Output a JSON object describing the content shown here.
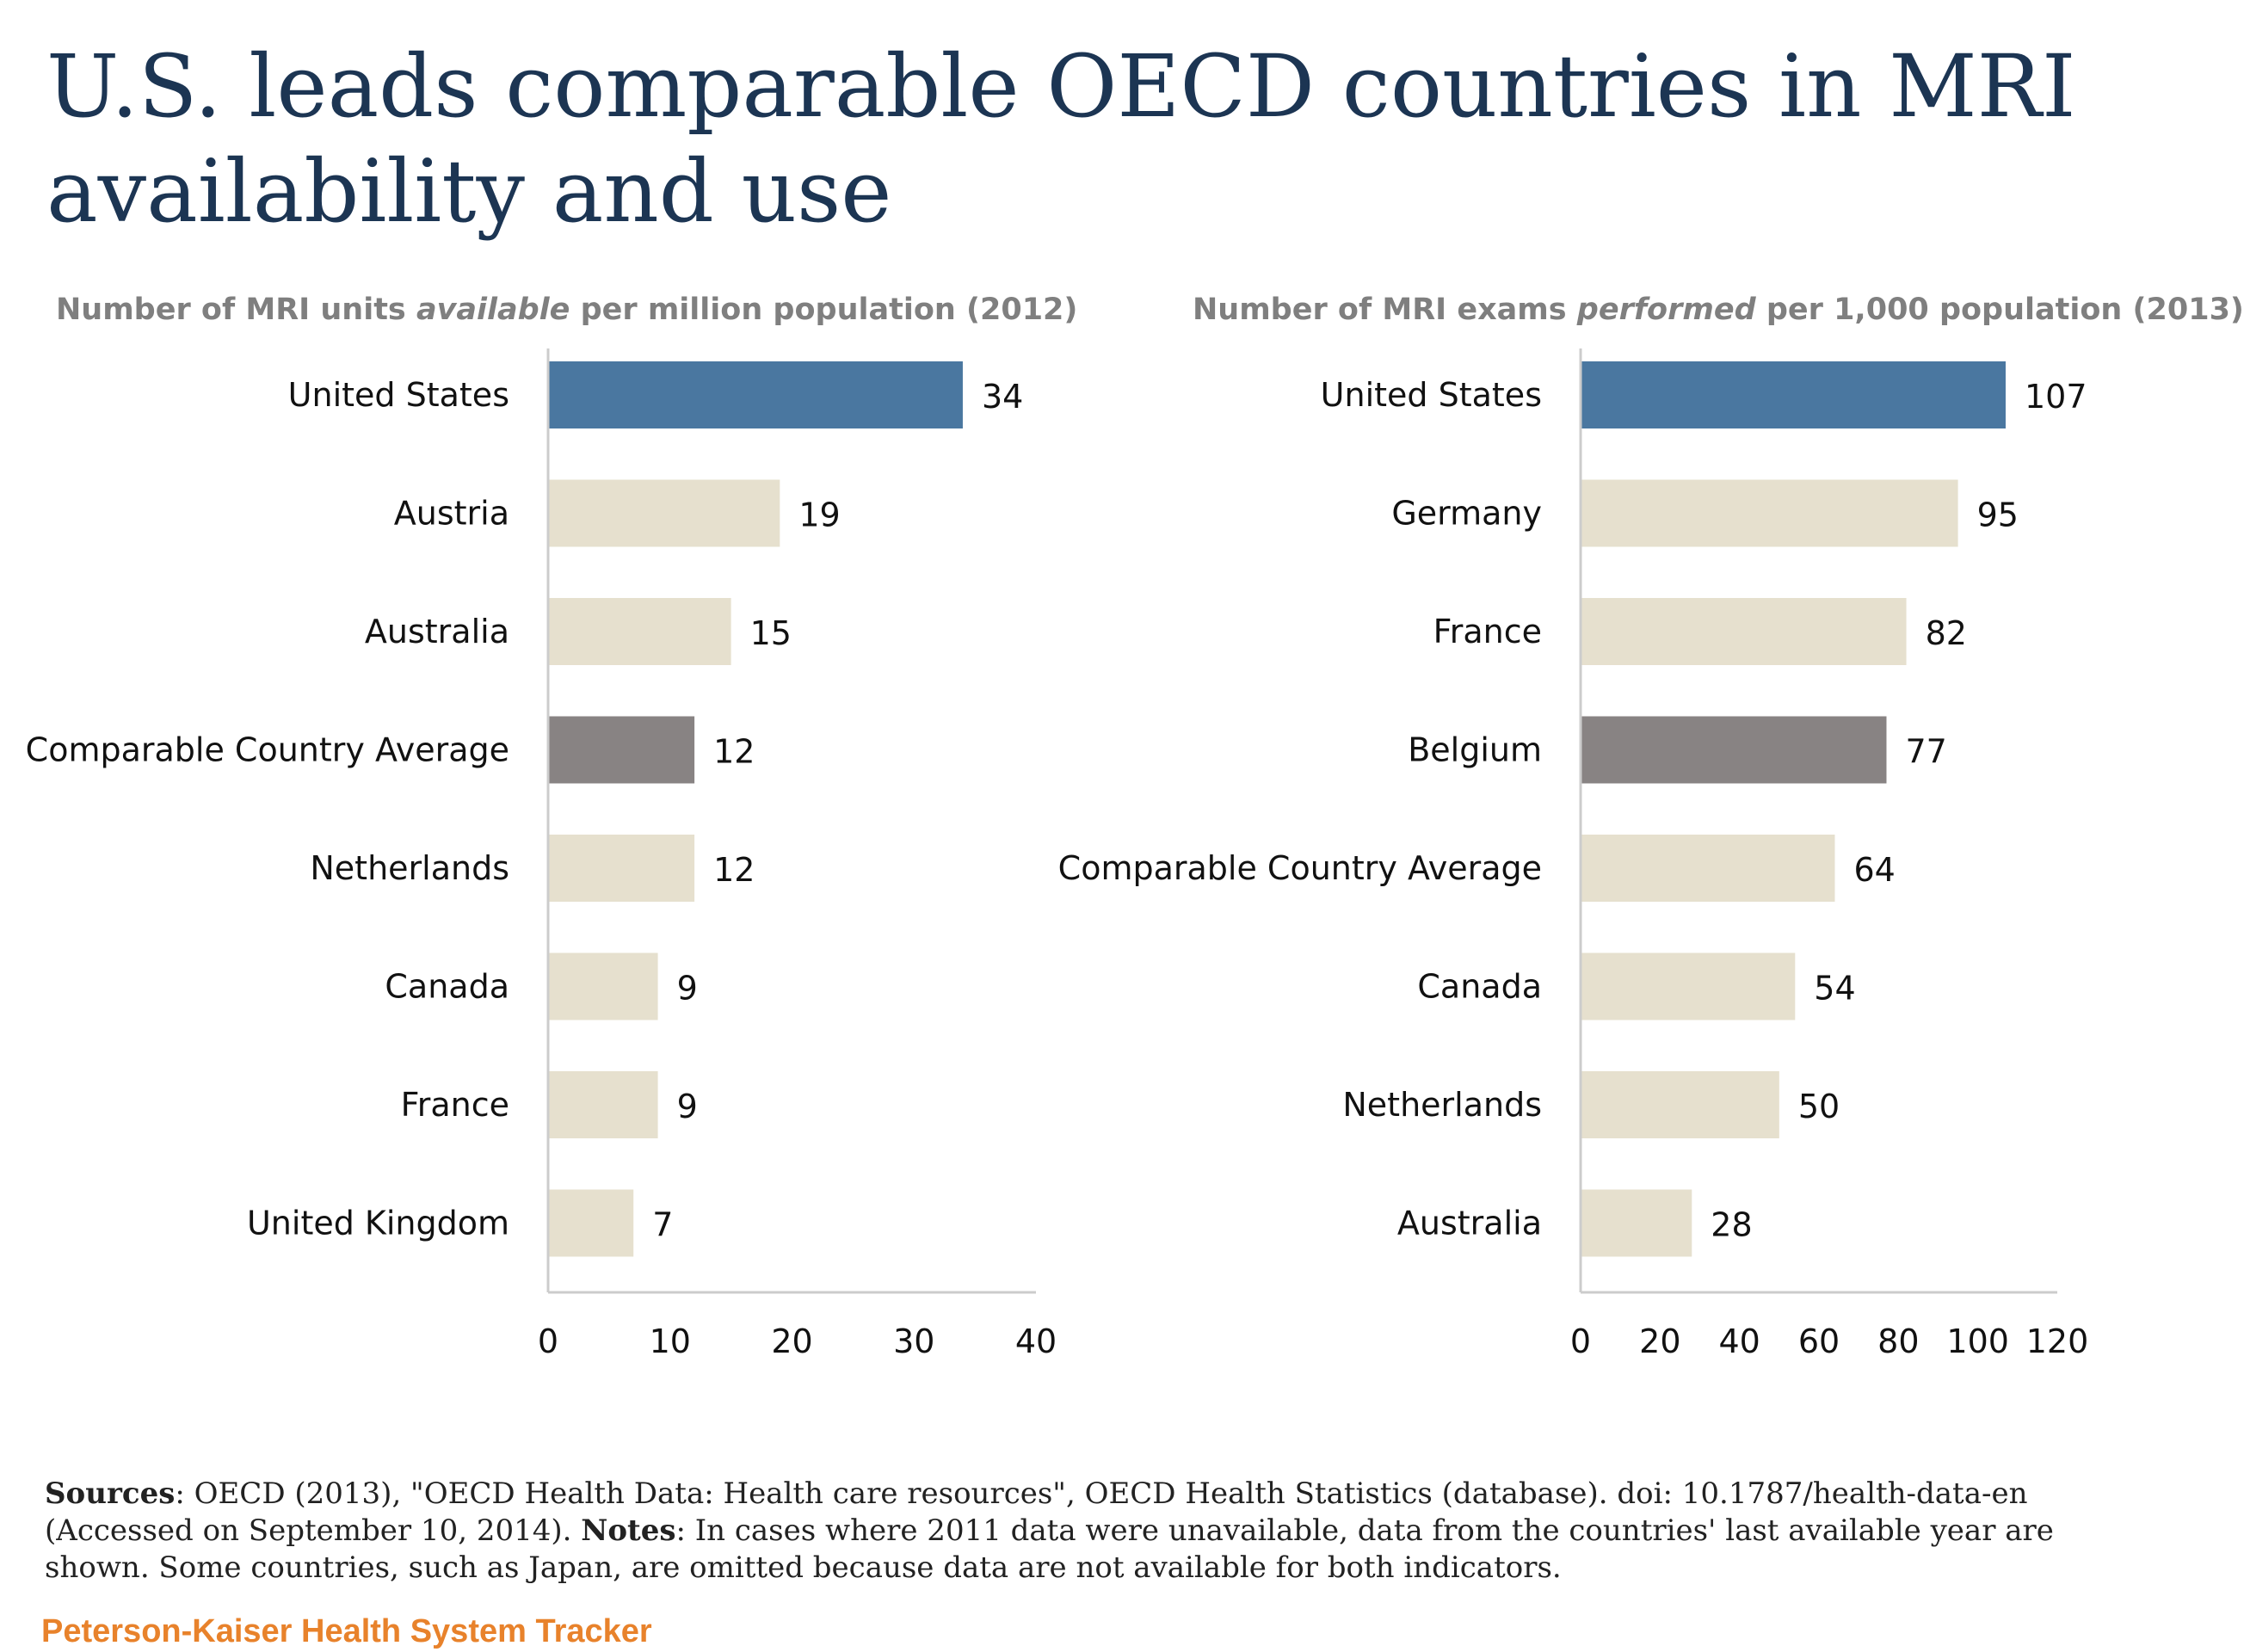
{
  "title": "U.S. leads comparable OECD countries in MRI availability and use",
  "colors": {
    "highlight": "#4a77a0",
    "average": "#888383",
    "default": "#e6e0ce",
    "axis": "#cccccc",
    "title": "#1c3553",
    "brand": "#e8822b"
  },
  "chart_data": [
    {
      "type": "bar",
      "orientation": "horizontal",
      "title_parts": [
        "Number of MRI units ",
        "available",
        " per million population (2012)"
      ],
      "categories": [
        "United States",
        "Austria",
        "Australia",
        "Comparable Country Average",
        "Netherlands",
        "Canada",
        "France",
        "United Kingdom"
      ],
      "values": [
        34,
        19,
        15,
        12,
        12,
        9,
        9,
        7
      ],
      "value_labels": [
        "34",
        "19",
        "15",
        "12",
        "12",
        "9",
        "9",
        "7"
      ],
      "bar_styles": [
        "highlight",
        "default",
        "default",
        "average",
        "default",
        "default",
        "default",
        "default"
      ],
      "xlim": [
        0,
        40
      ],
      "xticks": [
        0,
        10,
        20,
        30,
        40
      ],
      "grid": false,
      "legend": "none"
    },
    {
      "type": "bar",
      "orientation": "horizontal",
      "title_parts": [
        "Number of MRI exams ",
        "performed",
        "  per 1,000 population (2013)"
      ],
      "categories": [
        "United States",
        "Germany",
        "France",
        "Belgium",
        "Comparable Country Average",
        "Canada",
        "Netherlands",
        "Australia"
      ],
      "values": [
        107,
        95,
        82,
        77,
        64,
        54,
        50,
        28
      ],
      "value_labels": [
        "107",
        "95",
        "82",
        "77",
        "64",
        "54",
        "50",
        "28"
      ],
      "bar_styles": [
        "highlight",
        "default",
        "default",
        "average",
        "default",
        "default",
        "default",
        "default"
      ],
      "xlim": [
        0,
        120
      ],
      "xticks": [
        0,
        20,
        40,
        60,
        80,
        100,
        120
      ],
      "grid": false,
      "legend": "none"
    }
  ],
  "notes": {
    "sources_label": "Sources",
    "sources_text": ": OECD (2013), \"OECD Health Data: Health care resources\", OECD Health Statistics (database). doi: 10.1787/health-data-en (Accessed on September 10, 2014). ",
    "notes_label": "Notes",
    "notes_text": ": In cases where 2011 data were unavailable, data from the countries' last available year are shown.  Some countries, such as Japan, are omitted because data are not available for both indicators."
  },
  "brand": "Peterson-Kaiser Health System Tracker"
}
